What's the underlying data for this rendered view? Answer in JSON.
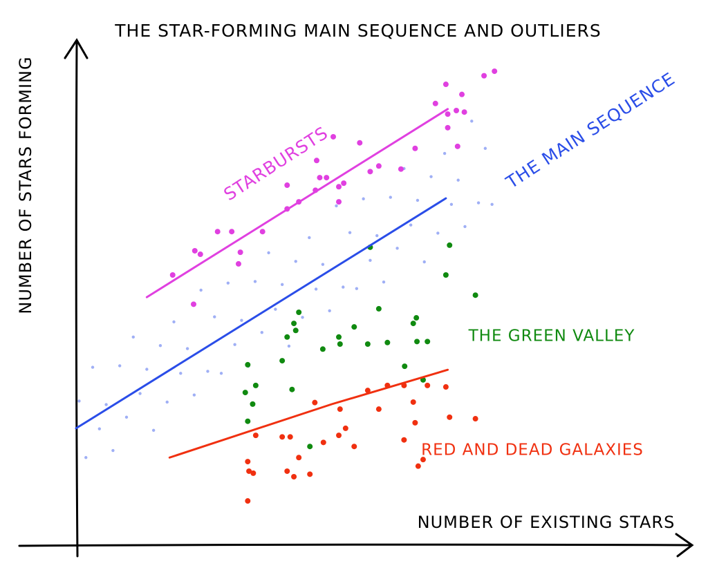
{
  "chart_data": {
    "type": "scatter",
    "title": "THE STAR-FORMING MAIN SEQUENCE AND OUTLIERS",
    "xlabel": "NUMBER OF EXISTING STARS",
    "ylabel": "NUMBER OF STARS FORMING",
    "xlim": [
      0,
      100
    ],
    "ylim": [
      0,
      100
    ],
    "series": [
      {
        "name": "THE MAIN SEQUENCE",
        "color": "#2a4de8",
        "x": [
          0.5,
          1.6,
          2.7,
          3.8,
          4.9,
          6.0,
          7.1,
          8.2,
          9.3,
          10.4,
          11.5,
          12.6,
          13.7,
          14.8,
          15.9,
          17.0,
          18.1,
          19.2,
          20.3,
          21.4,
          22.5,
          23.6,
          24.7,
          25.8,
          26.9,
          28.0,
          29.1,
          30.2,
          31.3,
          32.4,
          33.5,
          34.6,
          35.7,
          36.8,
          37.9,
          39.0,
          40.1,
          41.2,
          42.3,
          43.4,
          44.5,
          45.6,
          46.7,
          47.8,
          48.9,
          50.0,
          51.1,
          52.2,
          53.3,
          54.4,
          55.5,
          56.6,
          57.7,
          58.8,
          59.9,
          61.0,
          62.1,
          63.2,
          64.3,
          65.4,
          66.5,
          67.6
        ],
        "y": [
          28.7,
          17.5,
          35.4,
          23.2,
          28.0,
          18.9,
          35.7,
          25.5,
          41.4,
          30.2,
          35.0,
          22.9,
          39.7,
          28.5,
          44.4,
          34.2,
          39.1,
          29.9,
          50.7,
          34.6,
          45.4,
          34.2,
          52.1,
          39.9,
          44.7,
          35.6,
          52.4,
          42.3,
          58.1,
          46.9,
          51.8,
          39.6,
          56.4,
          45.3,
          61.1,
          50.9,
          55.8,
          46.6,
          67.4,
          51.3,
          62.1,
          51.0,
          68.8,
          56.6,
          61.5,
          52.3,
          69.1,
          59.0,
          74.8,
          63.6,
          68.5,
          56.3,
          73.2,
          62.0,
          77.8,
          67.7,
          72.5,
          63.3,
          84.2,
          68.0,
          78.8,
          67.7
        ],
        "fit_x": [
          0,
          60.1
        ],
        "fit_y": [
          23.3,
          68.9
        ]
      },
      {
        "name": "STARBURSTS",
        "color": "#e040e0",
        "x": [
          15.7,
          19.3,
          20.2,
          23.0,
          25.3,
          26.7,
          26.4,
          19.1,
          30.3,
          34.3,
          34.3,
          36.2,
          39.1,
          38.9,
          40.7,
          39.6,
          42.7,
          43.5,
          42.7,
          41.8,
          46.1,
          47.8,
          49.2,
          52.8,
          55.1,
          58.4,
          60.1,
          62.7,
          60.4,
          61.8,
          63.1,
          60.4,
          62.0,
          66.3,
          68.0
        ],
        "y": [
          53.7,
          58.5,
          57.8,
          62.3,
          62.3,
          58.2,
          55.9,
          47.9,
          62.3,
          71.5,
          66.8,
          68.2,
          76.4,
          70.5,
          73.0,
          73.0,
          71.2,
          71.9,
          68.2,
          81.1,
          79.9,
          74.2,
          75.3,
          74.7,
          78.8,
          87.7,
          91.5,
          89.5,
          85.6,
          86.3,
          86.0,
          82.9,
          79.2,
          93.2,
          94.1
        ],
        "fit_x": [
          11.5,
          60.4
        ],
        "fit_y": [
          49.3,
          86.6
        ]
      },
      {
        "name": "THE GREEN VALLEY",
        "color": "#108a10",
        "x": [
          27.9,
          27.5,
          29.2,
          28.7,
          27.9,
          33.5,
          34.3,
          35.1,
          35.4,
          36.2,
          35.7,
          40.1,
          42.7,
          42.9,
          45.2,
          47.4,
          47.8,
          49.2,
          50.6,
          53.4,
          54.8,
          55.3,
          55.4,
          57.1,
          56.4,
          60.7,
          60.1,
          64.9,
          38.0
        ],
        "y": [
          35.9,
          30.4,
          31.8,
          28.1,
          24.7,
          36.7,
          41.4,
          31.0,
          44.1,
          46.3,
          42.7,
          39.0,
          41.4,
          40.0,
          43.4,
          40.0,
          59.2,
          47.0,
          40.3,
          35.6,
          44.1,
          45.2,
          40.5,
          40.5,
          32.9,
          59.6,
          53.7,
          49.7,
          19.7
        ]
      },
      {
        "name": "RED AND DEAD GALAXIES",
        "color": "#f03010",
        "x": [
          27.9,
          28.1,
          28.8,
          27.9,
          29.2,
          33.5,
          34.8,
          34.3,
          35.4,
          36.2,
          38.0,
          38.8,
          40.2,
          42.7,
          42.9,
          43.8,
          45.2,
          47.4,
          49.2,
          50.6,
          53.3,
          53.3,
          54.8,
          55.1,
          55.6,
          56.4,
          57.1,
          60.1,
          60.7,
          64.9
        ],
        "y": [
          16.7,
          14.8,
          14.4,
          8.9,
          21.9,
          21.6,
          21.6,
          14.8,
          13.7,
          17.5,
          14.2,
          28.4,
          20.5,
          21.9,
          27.1,
          23.3,
          19.7,
          30.8,
          27.1,
          31.8,
          31.8,
          21.0,
          28.5,
          24.4,
          15.8,
          17.1,
          31.8,
          31.5,
          25.5,
          25.2
        ],
        "fit_x": [
          15.2,
          41.6,
          60.4
        ],
        "fit_y": [
          17.5,
          28.1,
          34.9
        ]
      }
    ]
  }
}
